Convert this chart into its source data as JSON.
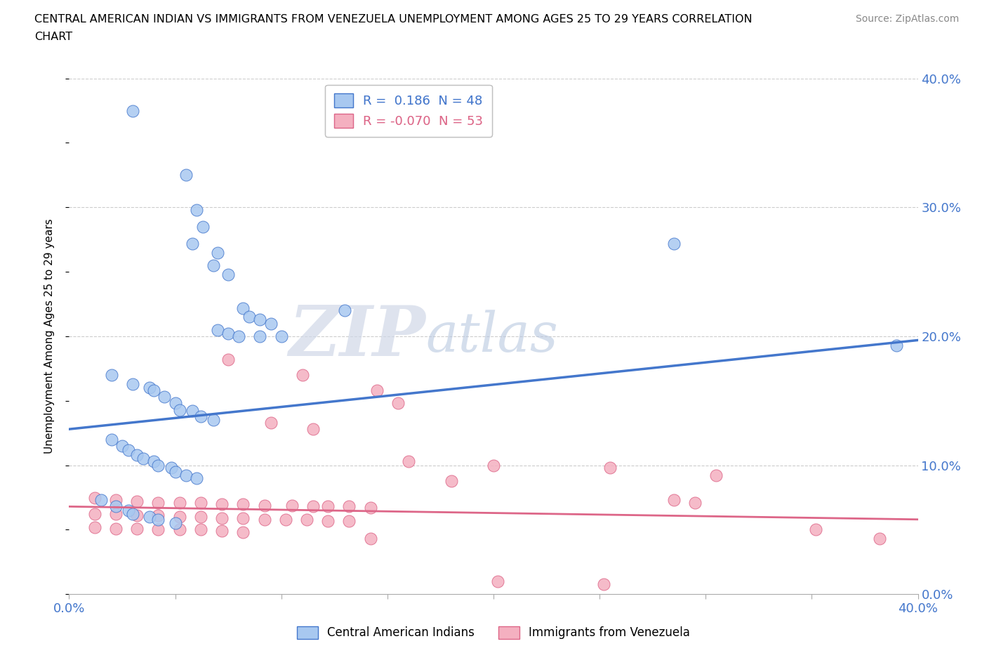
{
  "title_line1": "CENTRAL AMERICAN INDIAN VS IMMIGRANTS FROM VENEZUELA UNEMPLOYMENT AMONG AGES 25 TO 29 YEARS CORRELATION",
  "title_line2": "CHART",
  "source": "Source: ZipAtlas.com",
  "ylabel": "Unemployment Among Ages 25 to 29 years",
  "xlim": [
    0.0,
    0.4
  ],
  "ylim": [
    0.0,
    0.4
  ],
  "xticks": [
    0.0,
    0.05,
    0.1,
    0.15,
    0.2,
    0.25,
    0.3,
    0.35,
    0.4
  ],
  "yticks": [
    0.0,
    0.05,
    0.1,
    0.15,
    0.2,
    0.25,
    0.3,
    0.35,
    0.4
  ],
  "color_blue": "#A8C8F0",
  "color_pink": "#F4B0C0",
  "edge_blue": "#4477CC",
  "edge_pink": "#DD6688",
  "label_color": "#4477CC",
  "r_blue": 0.186,
  "n_blue": 48,
  "r_pink": -0.07,
  "n_pink": 53,
  "blue_line": [
    0.0,
    0.4,
    0.128,
    0.197
  ],
  "pink_line": [
    0.0,
    0.4,
    0.068,
    0.058
  ],
  "blue_points": [
    [
      0.03,
      0.375
    ],
    [
      0.055,
      0.325
    ],
    [
      0.06,
      0.298
    ],
    [
      0.063,
      0.285
    ],
    [
      0.058,
      0.272
    ],
    [
      0.07,
      0.265
    ],
    [
      0.068,
      0.255
    ],
    [
      0.075,
      0.248
    ],
    [
      0.082,
      0.222
    ],
    [
      0.085,
      0.215
    ],
    [
      0.09,
      0.213
    ],
    [
      0.095,
      0.21
    ],
    [
      0.07,
      0.205
    ],
    [
      0.075,
      0.202
    ],
    [
      0.08,
      0.2
    ],
    [
      0.09,
      0.2
    ],
    [
      0.1,
      0.2
    ],
    [
      0.13,
      0.22
    ],
    [
      0.02,
      0.17
    ],
    [
      0.03,
      0.163
    ],
    [
      0.038,
      0.16
    ],
    [
      0.04,
      0.158
    ],
    [
      0.045,
      0.153
    ],
    [
      0.05,
      0.148
    ],
    [
      0.052,
      0.143
    ],
    [
      0.058,
      0.142
    ],
    [
      0.062,
      0.138
    ],
    [
      0.068,
      0.135
    ],
    [
      0.02,
      0.12
    ],
    [
      0.025,
      0.115
    ],
    [
      0.028,
      0.112
    ],
    [
      0.032,
      0.108
    ],
    [
      0.035,
      0.105
    ],
    [
      0.04,
      0.103
    ],
    [
      0.042,
      0.1
    ],
    [
      0.048,
      0.098
    ],
    [
      0.05,
      0.095
    ],
    [
      0.055,
      0.092
    ],
    [
      0.06,
      0.09
    ],
    [
      0.015,
      0.073
    ],
    [
      0.022,
      0.068
    ],
    [
      0.028,
      0.065
    ],
    [
      0.03,
      0.062
    ],
    [
      0.038,
      0.06
    ],
    [
      0.042,
      0.058
    ],
    [
      0.05,
      0.055
    ],
    [
      0.285,
      0.272
    ],
    [
      0.39,
      0.193
    ]
  ],
  "pink_points": [
    [
      0.075,
      0.182
    ],
    [
      0.11,
      0.17
    ],
    [
      0.145,
      0.158
    ],
    [
      0.155,
      0.148
    ],
    [
      0.095,
      0.133
    ],
    [
      0.115,
      0.128
    ],
    [
      0.16,
      0.103
    ],
    [
      0.2,
      0.1
    ],
    [
      0.255,
      0.098
    ],
    [
      0.305,
      0.092
    ],
    [
      0.18,
      0.088
    ],
    [
      0.012,
      0.075
    ],
    [
      0.022,
      0.073
    ],
    [
      0.032,
      0.072
    ],
    [
      0.042,
      0.071
    ],
    [
      0.052,
      0.071
    ],
    [
      0.062,
      0.071
    ],
    [
      0.072,
      0.07
    ],
    [
      0.082,
      0.07
    ],
    [
      0.092,
      0.069
    ],
    [
      0.105,
      0.069
    ],
    [
      0.115,
      0.068
    ],
    [
      0.122,
      0.068
    ],
    [
      0.132,
      0.068
    ],
    [
      0.142,
      0.067
    ],
    [
      0.012,
      0.062
    ],
    [
      0.022,
      0.062
    ],
    [
      0.032,
      0.061
    ],
    [
      0.042,
      0.061
    ],
    [
      0.052,
      0.06
    ],
    [
      0.062,
      0.06
    ],
    [
      0.072,
      0.059
    ],
    [
      0.082,
      0.059
    ],
    [
      0.092,
      0.058
    ],
    [
      0.102,
      0.058
    ],
    [
      0.112,
      0.058
    ],
    [
      0.122,
      0.057
    ],
    [
      0.132,
      0.057
    ],
    [
      0.012,
      0.052
    ],
    [
      0.022,
      0.051
    ],
    [
      0.032,
      0.051
    ],
    [
      0.042,
      0.05
    ],
    [
      0.052,
      0.05
    ],
    [
      0.062,
      0.05
    ],
    [
      0.072,
      0.049
    ],
    [
      0.082,
      0.048
    ],
    [
      0.285,
      0.073
    ],
    [
      0.295,
      0.071
    ],
    [
      0.352,
      0.05
    ],
    [
      0.382,
      0.043
    ],
    [
      0.142,
      0.043
    ],
    [
      0.202,
      0.01
    ],
    [
      0.252,
      0.008
    ]
  ]
}
